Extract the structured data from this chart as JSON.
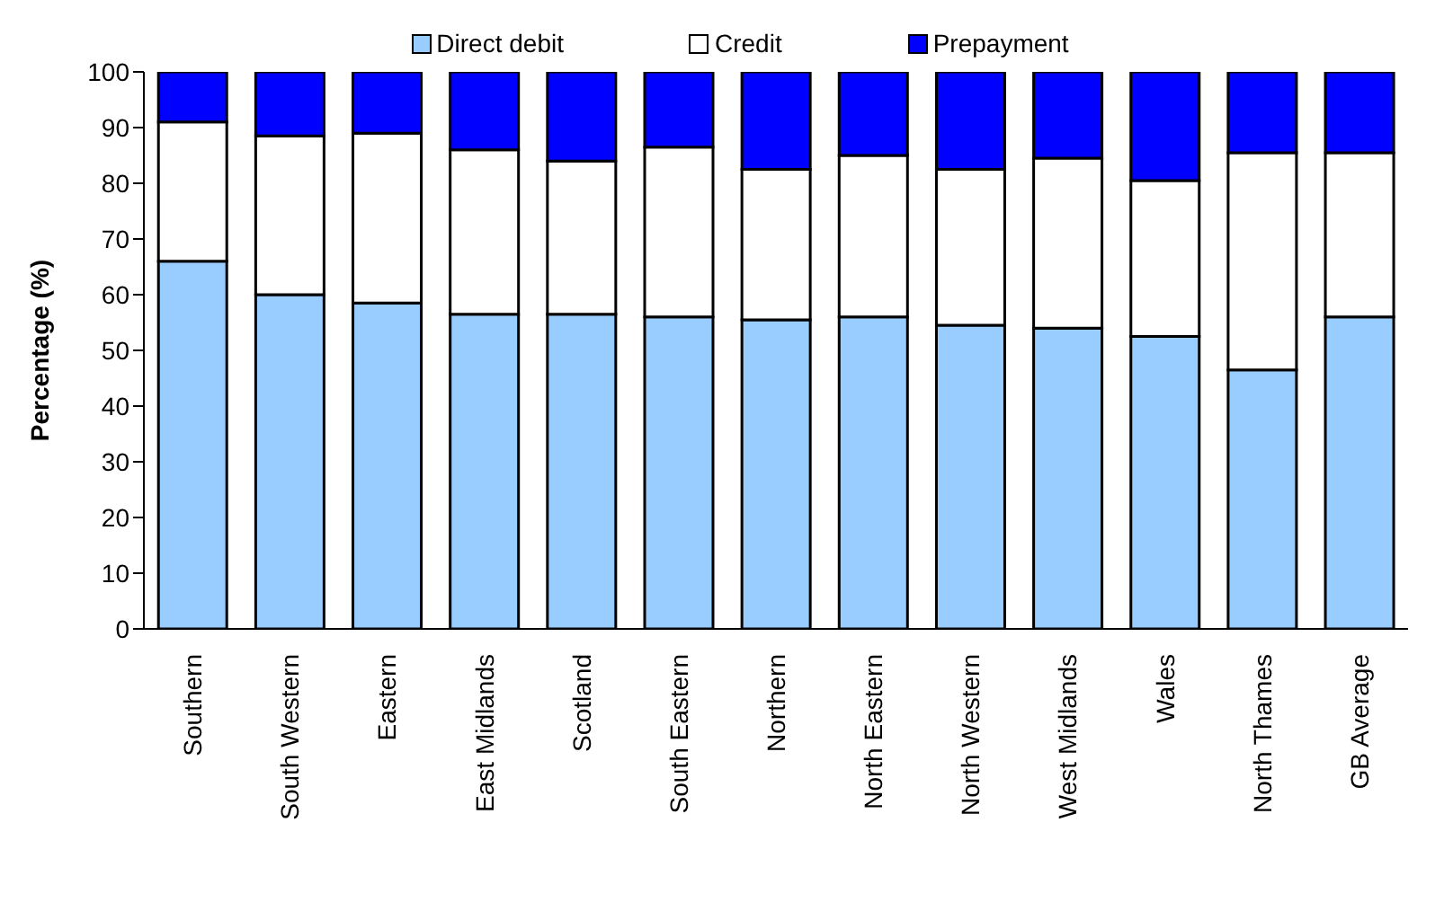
{
  "chart_data": {
    "type": "bar",
    "stacked": true,
    "ylabel": "Percentage (%)",
    "categories": [
      "Southern",
      "South Western",
      "Eastern",
      "East Midlands",
      "Scotland",
      "South Eastern",
      "Northern",
      "North Eastern",
      "North Western",
      "West Midlands",
      "Wales",
      "North Thames",
      "GB Average"
    ],
    "series": [
      {
        "name": "Direct debit",
        "color": "#99ccff",
        "values": [
          66,
          60,
          58.5,
          56.5,
          56.5,
          56,
          55.5,
          56,
          54.5,
          54,
          52.5,
          46.5,
          56
        ]
      },
      {
        "name": "Credit",
        "color": "#ffffff",
        "values": [
          25,
          28.5,
          30.5,
          29.5,
          27.5,
          30.5,
          27,
          29,
          28,
          30.5,
          28,
          39,
          29.5
        ]
      },
      {
        "name": "Prepayment",
        "color": "#0000ff",
        "values": [
          9,
          11.5,
          11,
          14,
          16,
          13.5,
          17.5,
          15,
          17.5,
          15.5,
          19.5,
          14.5,
          14.5
        ]
      }
    ],
    "ylim": [
      0,
      100
    ],
    "yticks": [
      0,
      10,
      20,
      30,
      40,
      50,
      60,
      70,
      80,
      90,
      100
    ],
    "legend": "top"
  }
}
